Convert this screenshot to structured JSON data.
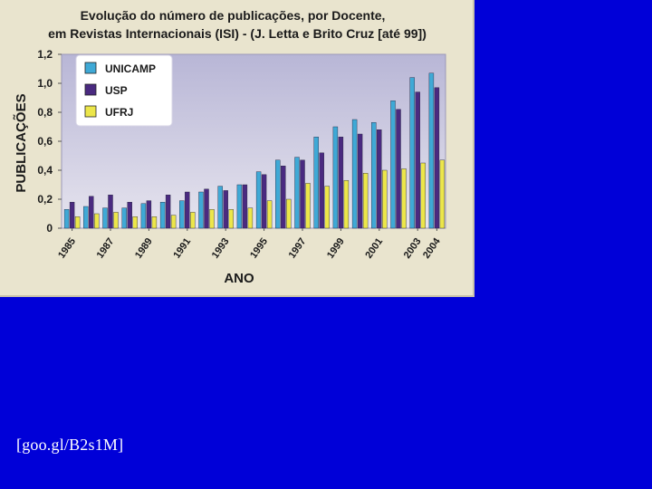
{
  "chart_data": {
    "type": "bar",
    "title": "Evolução do número de publicações, por Docente,",
    "subtitle": "em Revistas Internacionais (ISI) - (J. Letta e Brito Cruz [até 99])",
    "xlabel": "ANO",
    "ylabel": "PUBLICAÇÕES",
    "ylim": [
      0,
      1.2
    ],
    "yticks": [
      "0",
      "0,2",
      "0,4",
      "0,6",
      "0,8",
      "1,0",
      "1,2"
    ],
    "grid": false,
    "legend_position": "top-left",
    "categories": [
      "1985",
      "1986",
      "1987",
      "1988",
      "1989",
      "1990",
      "1991",
      "1992",
      "1993",
      "1994",
      "1995",
      "1996",
      "1997",
      "1998",
      "1999",
      "2000",
      "2001",
      "2002",
      "2003",
      "2004"
    ],
    "xtick_labels": [
      "1985",
      "1987",
      "1989",
      "1991",
      "1993",
      "1995",
      "1997",
      "1999",
      "2001",
      "2003",
      "2004"
    ],
    "series": [
      {
        "name": "UNICAMP",
        "color": "#3fa9d6",
        "values": [
          0.13,
          0.15,
          0.14,
          0.14,
          0.17,
          0.18,
          0.19,
          0.25,
          0.29,
          0.3,
          0.39,
          0.47,
          0.49,
          0.63,
          0.7,
          0.75,
          0.73,
          0.88,
          1.04,
          1.07
        ]
      },
      {
        "name": "USP",
        "color": "#4a2a80",
        "values": [
          0.18,
          0.22,
          0.23,
          0.18,
          0.19,
          0.23,
          0.25,
          0.27,
          0.26,
          0.3,
          0.37,
          0.43,
          0.47,
          0.52,
          0.63,
          0.65,
          0.68,
          0.82,
          0.94,
          0.97
        ]
      },
      {
        "name": "UFRJ",
        "color": "#ece64a",
        "values": [
          0.08,
          0.1,
          0.11,
          0.08,
          0.08,
          0.09,
          0.11,
          0.13,
          0.13,
          0.14,
          0.19,
          0.2,
          0.31,
          0.29,
          0.33,
          0.38,
          0.4,
          0.41,
          0.45,
          0.47
        ]
      }
    ],
    "colors": {
      "plot_bg_top": "#b8b6d6",
      "plot_bg_bottom": "#e6e4ee",
      "text": "#1a1a1a"
    }
  },
  "caption": "[goo.gl/B2s1M]"
}
